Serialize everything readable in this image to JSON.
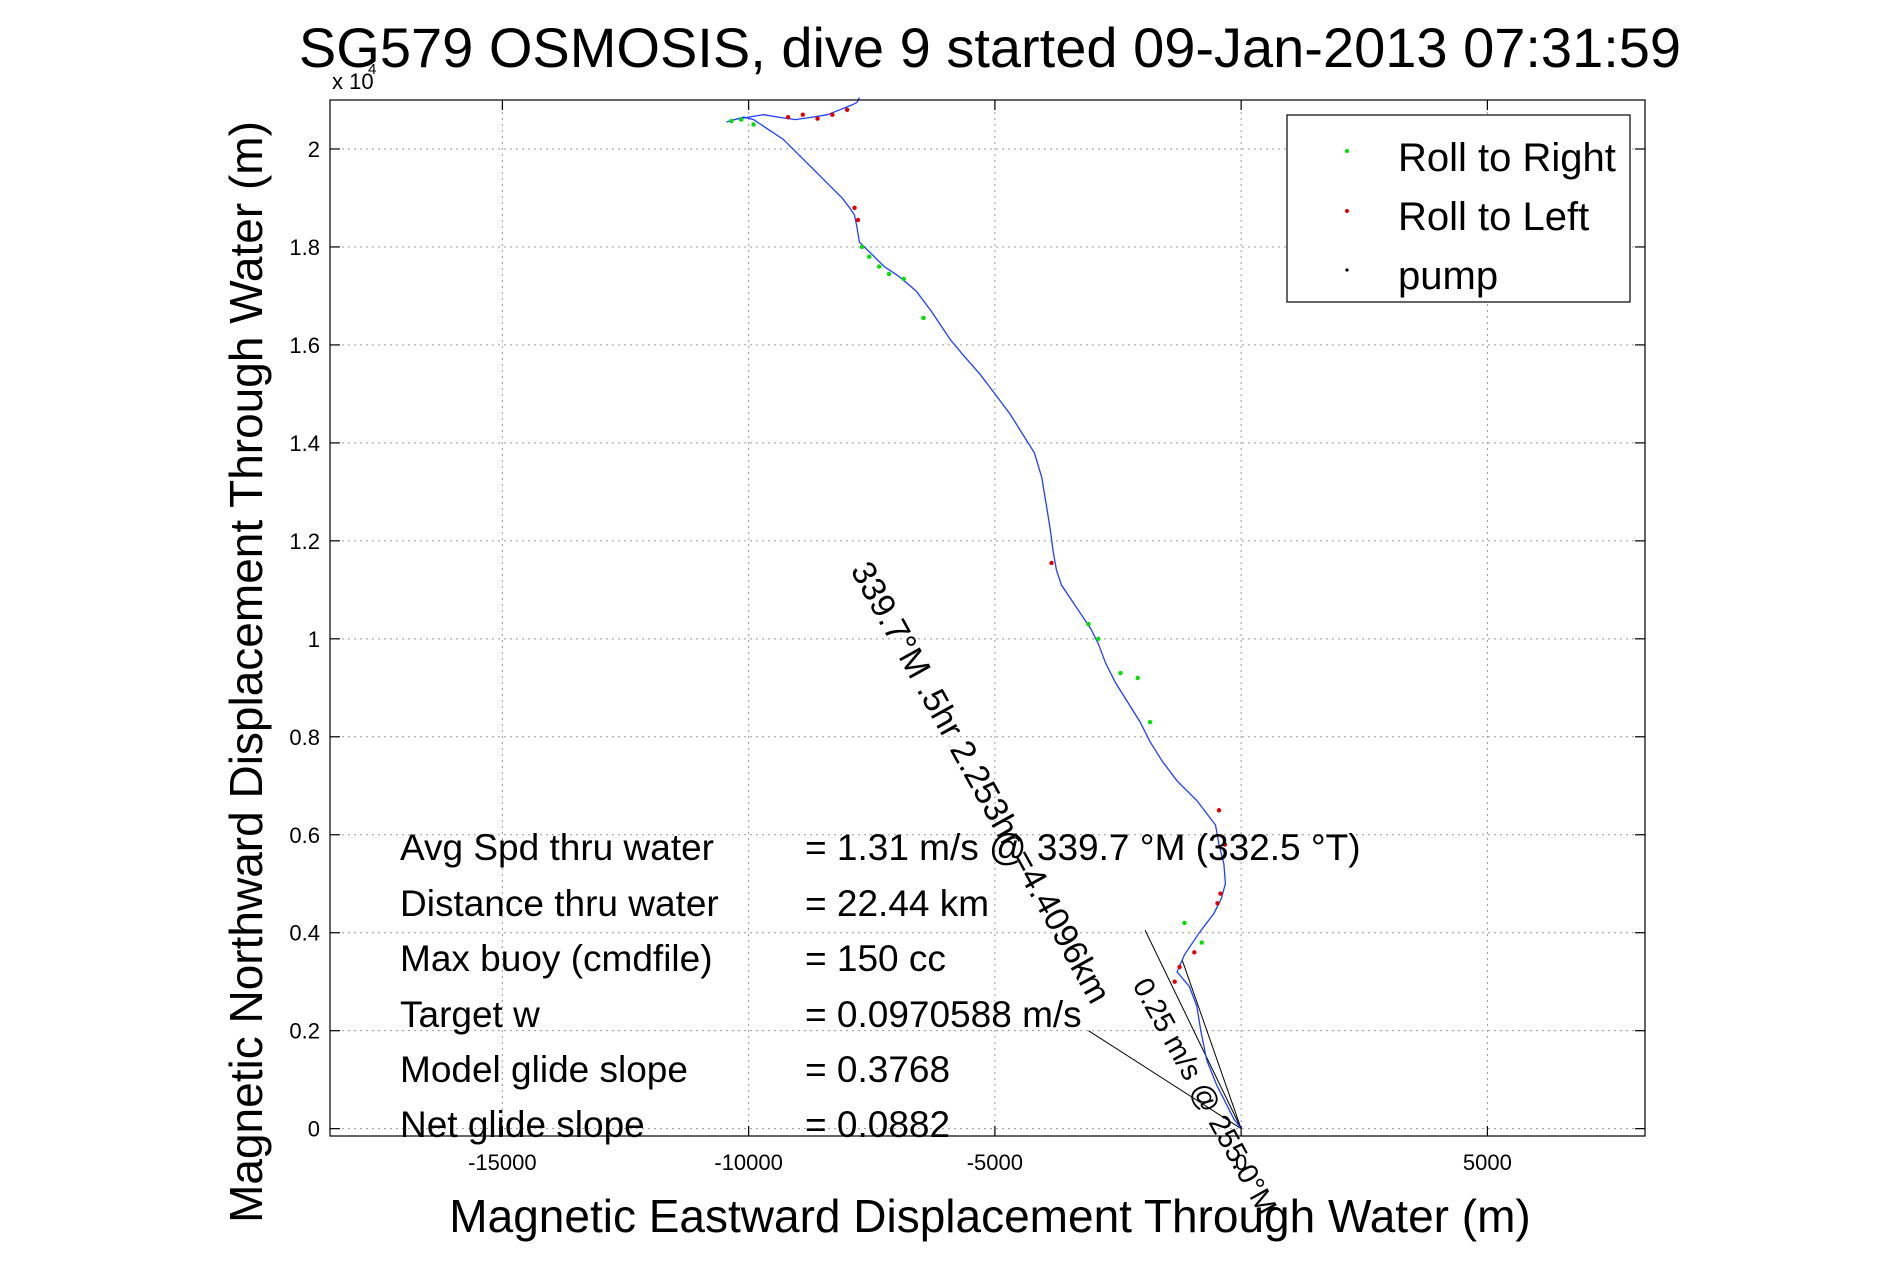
{
  "chart_data": {
    "type": "line",
    "title": "SG579 OSMOSIS, dive 9 started 09-Jan-2013 07:31:59",
    "xlabel": "Magnetic Eastward Displacement Through Water (m)",
    "ylabel": "Magnetic Northward Displacement Through Water (m)",
    "y_exponent_label": "x 10",
    "y_exponent_power": "4",
    "xlim": [
      -18500,
      8200
    ],
    "ylim": [
      -0.015,
      2.1
    ],
    "xticks": [
      -15000,
      -10000,
      -5000,
      0,
      5000
    ],
    "xtick_labels": [
      "-15000",
      "-10000",
      "-5000",
      "0",
      "5000"
    ],
    "yticks": [
      0,
      0.2,
      0.4,
      0.6,
      0.8,
      1,
      1.2,
      1.4,
      1.6,
      1.8,
      2
    ],
    "ytick_labels": [
      "0",
      "0.2",
      "0.4",
      "0.6",
      "0.8",
      "1",
      "1.2",
      "1.4",
      "1.6",
      "1.8",
      "2"
    ],
    "grid": true,
    "legend_position": "top-right",
    "legend": [
      {
        "label": "Roll to Right",
        "color": "#00e000"
      },
      {
        "label": "Roll to Left",
        "color": "#e00000"
      },
      {
        "label": "pump",
        "color": "#000000"
      }
    ],
    "track_color": "#1f3fff",
    "track": {
      "x": [
        0,
        -150,
        -300,
        -500,
        -700,
        -820,
        -900,
        -1050,
        -1300,
        -1150,
        -850,
        -550,
        -400,
        -320,
        -350,
        -450,
        -520,
        -900,
        -1300,
        -1600,
        -1850,
        -2050,
        -2300,
        -2550,
        -2750,
        -2900,
        -3050,
        -3250,
        -3450,
        -3650,
        -3750,
        -3820,
        -3870,
        -3950,
        -4050,
        -4200,
        -4450,
        -4700,
        -5000,
        -5300,
        -5650,
        -5900,
        -6100,
        -6300,
        -6600,
        -6950,
        -7250,
        -7550,
        -7750,
        -7800,
        -7850,
        -7950,
        -8100,
        -8400,
        -8700,
        -9000,
        -9300,
        -9600,
        -9900,
        -10100,
        -10450,
        -10300,
        -10000,
        -9700,
        -9400,
        -9050,
        -8700,
        -8400,
        -8150,
        -7900,
        -7800,
        -7750
      ],
      "y": [
        0,
        0.02,
        0.05,
        0.09,
        0.14,
        0.2,
        0.25,
        0.29,
        0.32,
        0.355,
        0.4,
        0.44,
        0.47,
        0.5,
        0.54,
        0.58,
        0.62,
        0.67,
        0.71,
        0.75,
        0.79,
        0.83,
        0.87,
        0.91,
        0.95,
        0.99,
        1.02,
        1.05,
        1.08,
        1.11,
        1.14,
        1.18,
        1.22,
        1.27,
        1.33,
        1.38,
        1.42,
        1.46,
        1.5,
        1.54,
        1.58,
        1.61,
        1.64,
        1.67,
        1.71,
        1.74,
        1.76,
        1.79,
        1.81,
        1.84,
        1.865,
        1.88,
        1.9,
        1.93,
        1.96,
        1.99,
        2.02,
        2.04,
        2.06,
        2.065,
        2.055,
        2.06,
        2.065,
        2.07,
        2.065,
        2.06,
        2.065,
        2.07,
        2.08,
        2.09,
        2.095,
        2.105
      ]
    },
    "roll_right_points": {
      "x": [
        -10350,
        -10150,
        -9900,
        -7700,
        -7550,
        -7350,
        -7150,
        -6850,
        -6450,
        -3100,
        -2900,
        -2450,
        -2100,
        -1850,
        -1150,
        -800
      ],
      "y": [
        2.057,
        2.06,
        2.05,
        1.8,
        1.78,
        1.76,
        1.745,
        1.735,
        1.655,
        1.03,
        1.0,
        0.93,
        0.92,
        0.83,
        0.42,
        0.38
      ]
    },
    "roll_left_points": {
      "x": [
        -9200,
        -8900,
        -8600,
        -8300,
        -8000,
        -7850,
        -7780,
        -3850,
        -450,
        -330,
        -420,
        -480,
        -950,
        -1250,
        -1350
      ],
      "y": [
        2.065,
        2.07,
        2.062,
        2.07,
        2.08,
        1.88,
        1.855,
        1.155,
        0.65,
        0.58,
        0.48,
        0.46,
        0.36,
        0.33,
        0.3
      ]
    },
    "reference_lines": [
      {
        "x": [
          0,
          -1950
        ],
        "y": [
          0,
          0.405
        ]
      },
      {
        "x": [
          0,
          -1200
        ],
        "y": [
          0,
          0.345
        ]
      },
      {
        "x": [
          0,
          -3100
        ],
        "y": [
          0,
          0.2
        ]
      }
    ],
    "annotations": {
      "heading_line_text": "339.7°M .5hr 2.253hr =4.4096km",
      "small_text": "0.25 m/s @ 255.0°M",
      "stats": [
        {
          "label": "Avg Spd thru water",
          "value": "=  1.31 m/s @ 339.7 °M (332.5 °T)"
        },
        {
          "label": "Distance thru water",
          "value": "= 22.44 km"
        },
        {
          "label": "Max buoy (cmdfile)",
          "value": "= 150 cc"
        },
        {
          "label": "Target w",
          "value": "= 0.0970588 m/s"
        },
        {
          "label": "Model glide slope",
          "value": "= 0.3768"
        },
        {
          "label": "Net glide slope",
          "value": "= 0.0882"
        }
      ]
    }
  }
}
